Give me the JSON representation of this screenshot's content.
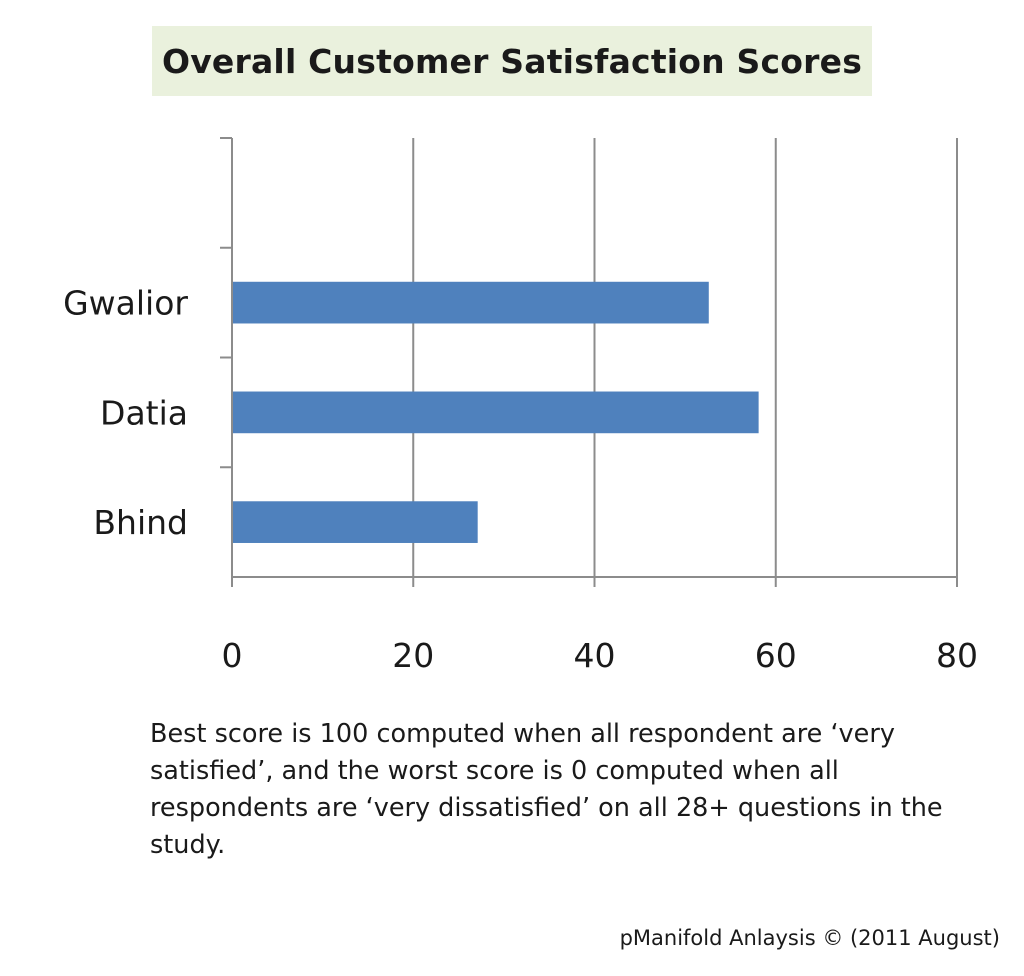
{
  "chart_data": {
    "type": "bar",
    "orientation": "horizontal",
    "title": "Overall Customer Satisfaction Scores",
    "categories": [
      "Gwalior",
      "Datia",
      "Bhind"
    ],
    "values": [
      52.5,
      58,
      27
    ],
    "xlim": [
      0,
      80
    ],
    "xticks": [
      "0",
      "20",
      "40",
      "60",
      "80"
    ],
    "grid": "vertical",
    "bar_color": "#4f81bd"
  },
  "note": "Best score is 100 computed when all respondent are ‘very satisfied’, and the worst score is 0 computed when all respondents are ‘very dissatisfied’ on all 28+ questions in the study.",
  "credit": "pManifold Anlaysis © (2011 August)"
}
